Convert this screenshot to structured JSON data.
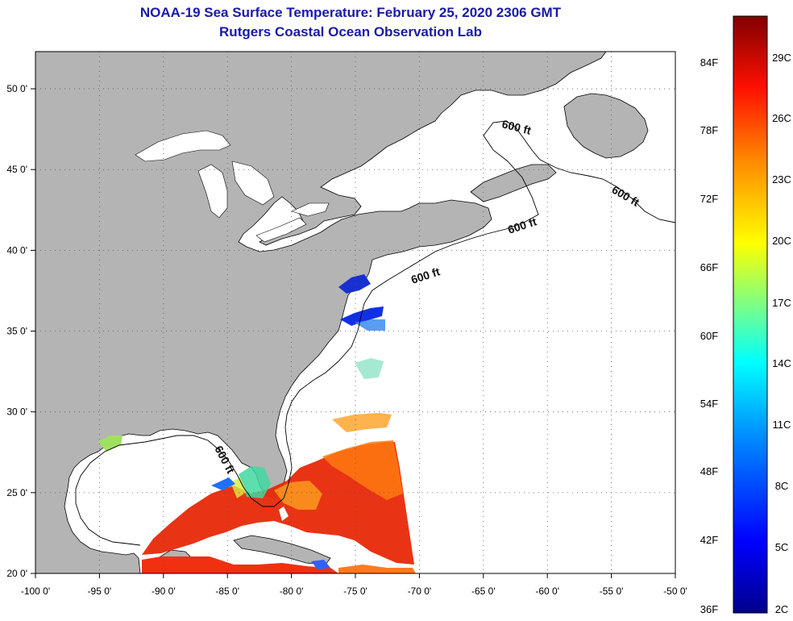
{
  "title_line1": "NOAA-19 Sea Surface Temperature:  February 25, 2020 2306 GMT",
  "title_line2": "Rutgers Coastal Ocean Observation Lab",
  "map": {
    "lon_range": [
      -100,
      -50
    ],
    "lat_range": [
      20,
      52.3
    ],
    "lon_ticks": [
      {
        "value": -100,
        "label": "-100 0'"
      },
      {
        "value": -95,
        "label": "-95 0'"
      },
      {
        "value": -90,
        "label": "-90 0'"
      },
      {
        "value": -85,
        "label": "-85 0'"
      },
      {
        "value": -80,
        "label": "-80 0'"
      },
      {
        "value": -75,
        "label": "-75 0'"
      },
      {
        "value": -70,
        "label": "-70 0'"
      },
      {
        "value": -65,
        "label": "-65 0'"
      },
      {
        "value": -60,
        "label": "-60 0'"
      },
      {
        "value": -55,
        "label": "-55 0'"
      },
      {
        "value": -50,
        "label": "-50 0'"
      }
    ],
    "lat_ticks": [
      {
        "value": 20,
        "label": "20 0'"
      },
      {
        "value": 25,
        "label": "25 0'"
      },
      {
        "value": 30,
        "label": "30 0'"
      },
      {
        "value": 35,
        "label": "35 0'"
      },
      {
        "value": 40,
        "label": "40 0'"
      },
      {
        "value": 45,
        "label": "45 0'"
      },
      {
        "value": 50,
        "label": "50 0'"
      }
    ],
    "grid": "dotted",
    "land_color": "#b4b4b4",
    "depth_contour_label": "600 ft"
  },
  "colorbar": {
    "fahrenheit": [
      "84F",
      "78F",
      "72F",
      "66F",
      "60F",
      "54F",
      "48F",
      "42F",
      "36F"
    ],
    "celsius": [
      "29C",
      "26C",
      "23C",
      "20C",
      "17C",
      "14C",
      "11C",
      "8C",
      "5C",
      "2C"
    ],
    "colors": [
      "#800000",
      "#ff0000",
      "#ff8000",
      "#ffff00",
      "#80ff80",
      "#00ffff",
      "#0080ff",
      "#0000ff",
      "#00008c"
    ]
  }
}
